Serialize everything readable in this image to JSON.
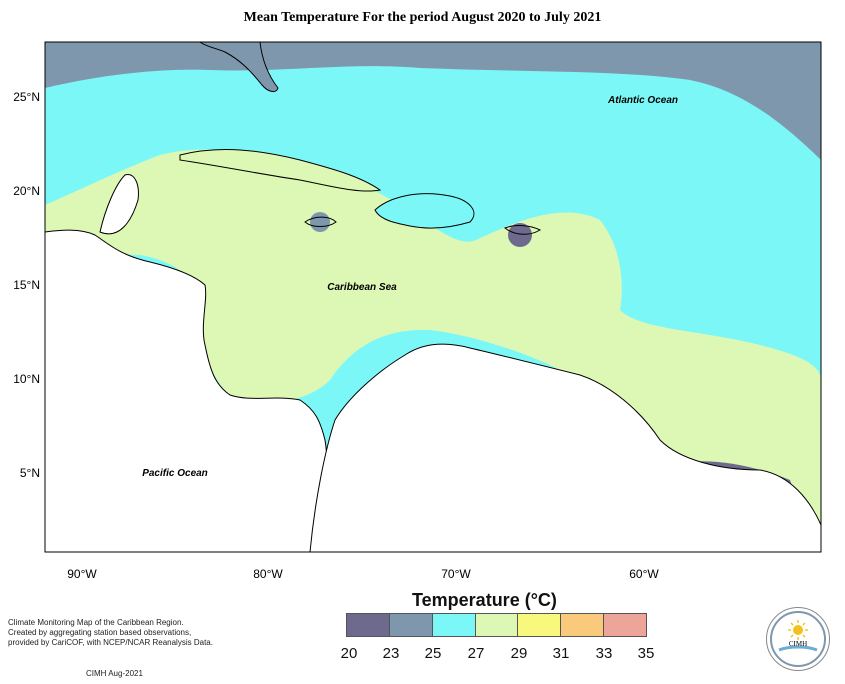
{
  "title": "Mean Temperature For the period August 2020 to July 2021",
  "map": {
    "latitude_labels": [
      "25°N",
      "20°N",
      "15°N",
      "10°N",
      "5°N"
    ],
    "longitude_labels": [
      "90°W",
      "80°W",
      "70°W",
      "60°W"
    ],
    "place_labels": {
      "atlantic": "Atlantic Ocean",
      "caribbean": "Caribbean Sea",
      "pacific": "Pacific Ocean"
    },
    "colors": {
      "t20_23": "#6e6a8e",
      "t23_25": "#7e97ad",
      "t25_27": "#7cf7f7",
      "t27_29": "#ddf7b5",
      "land": "#ffffff",
      "frame": "#000000"
    }
  },
  "legend": {
    "title": "Temperature (°C)",
    "ticks": [
      "20",
      "23",
      "25",
      "27",
      "29",
      "31",
      "33",
      "35"
    ],
    "colors": [
      "#6e6a8e",
      "#7e97ad",
      "#7cf7f7",
      "#ddf7b5",
      "#f8f77e",
      "#f9c97c",
      "#eca598"
    ]
  },
  "notes": {
    "line1": "Climate Monitoring Map of the Caribbean Region.",
    "line2": "Created by aggregating station based observations,",
    "line3": "provided by CariCOF, with NCEP/NCAR Reanalysis Data.",
    "credit": "CIMH Aug-2021"
  },
  "logo": {
    "text": "CIMH",
    "icon": "cimh-sun-logo"
  }
}
